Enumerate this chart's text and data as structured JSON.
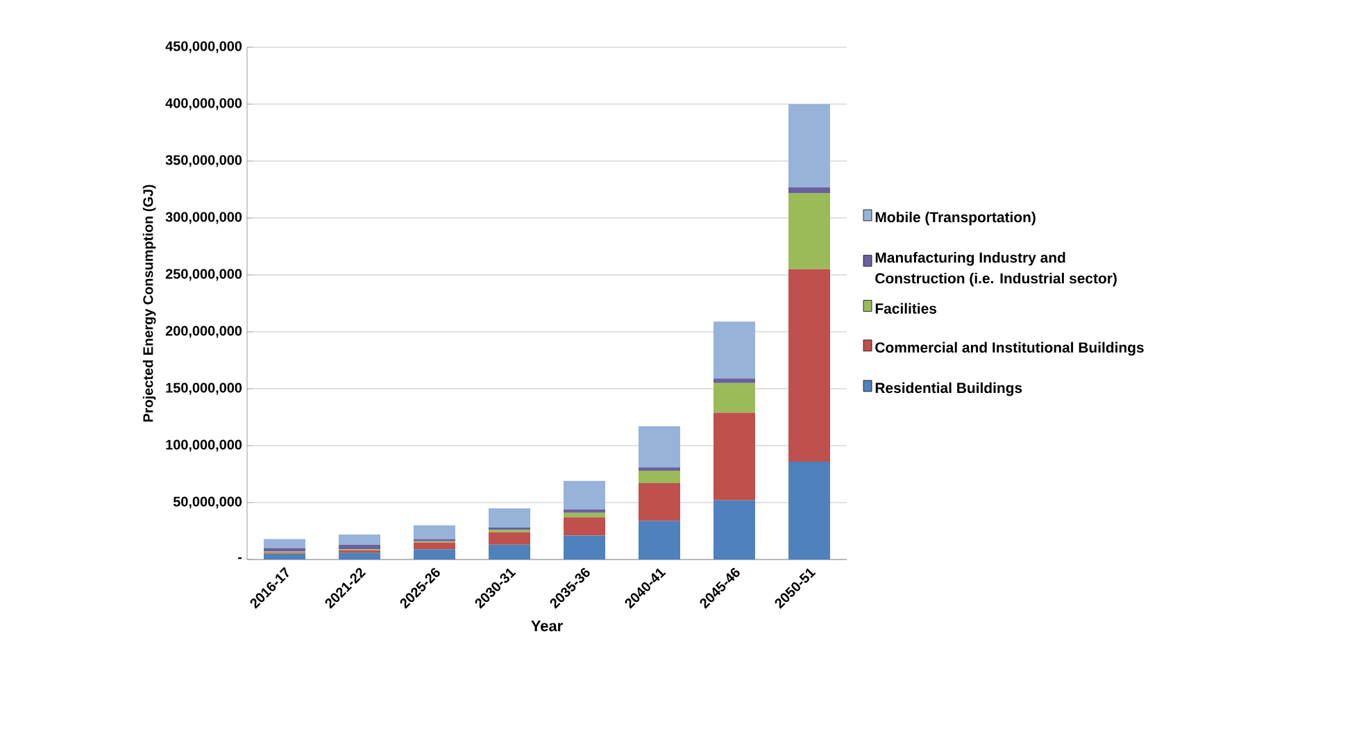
{
  "chart_data": {
    "type": "bar",
    "stacked": true,
    "xlabel": "Year",
    "ylabel": "Projected Energy Consumption  (GJ)",
    "categories": [
      "2016-17",
      "2021-22",
      "2025-26",
      "2030-31",
      "2035-36",
      "2040-41",
      "2045-46",
      "2050-51"
    ],
    "series": [
      {
        "name": "Residential Buildings",
        "color": "#4f81bd",
        "values": [
          5000000,
          6000000,
          9000000,
          13000000,
          21000000,
          34000000,
          52000000,
          86000000
        ]
      },
      {
        "name": "Commercial and Institutional Buildings",
        "color": "#c0504d",
        "values": [
          1000000,
          2000000,
          6000000,
          11000000,
          16000000,
          33000000,
          77000000,
          169000000
        ]
      },
      {
        "name": "Facilities",
        "color": "#9bbb59",
        "values": [
          1000000,
          1000000,
          1000000,
          2000000,
          4000000,
          11000000,
          26000000,
          67000000
        ]
      },
      {
        "name": "Manufacturing Industry and Construction (i.e. Industrial sector)",
        "color": "#6a5f9f",
        "values": [
          3000000,
          4000000,
          2000000,
          2000000,
          3000000,
          3000000,
          4000000,
          5000000
        ]
      },
      {
        "name": "Mobile (Transportation)",
        "color": "#98b3da",
        "values": [
          8000000,
          9000000,
          12000000,
          17000000,
          25000000,
          36000000,
          50000000,
          73000000
        ]
      }
    ],
    "ylim": [
      0,
      450000000
    ],
    "yticks": [
      {
        "value": 0,
        "label": "-"
      },
      {
        "value": 50000000,
        "label": "50,000,000"
      },
      {
        "value": 100000000,
        "label": "100,000,000"
      },
      {
        "value": 150000000,
        "label": "150,000,000"
      },
      {
        "value": 200000000,
        "label": "200,000,000"
      },
      {
        "value": 250000000,
        "label": "250,000,000"
      },
      {
        "value": 300000000,
        "label": "300,000,000"
      },
      {
        "value": 350000000,
        "label": "350,000,000"
      },
      {
        "value": 400000000,
        "label": "400,000,000"
      },
      {
        "value": 450000000,
        "label": "450,000,000"
      }
    ],
    "grid": "y",
    "legend": "right"
  }
}
